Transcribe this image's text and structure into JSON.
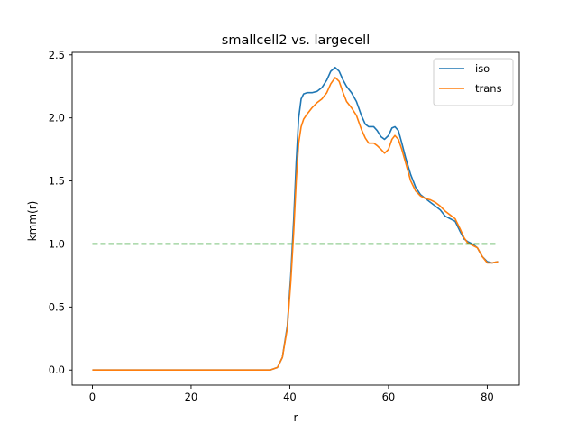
{
  "chart_data": {
    "type": "line",
    "title": "smallcell2 vs. largecell",
    "xlabel": "r",
    "ylabel": "kmm(r)",
    "xlim": [
      -4.1,
      86.5
    ],
    "ylim": [
      -0.12,
      2.52
    ],
    "xticks": [
      0,
      20,
      40,
      60,
      80
    ],
    "yticks": [
      0.0,
      0.5,
      1.0,
      1.5,
      2.0,
      2.5
    ],
    "xtick_labels": [
      "0",
      "20",
      "40",
      "60",
      "80"
    ],
    "ytick_labels": [
      "0.0",
      "0.5",
      "1.0",
      "1.5",
      "2.0",
      "2.5"
    ],
    "legend_position": "top-right",
    "grid": false,
    "series": [
      {
        "name": "iso",
        "color": "#1f77b4",
        "style": "solid",
        "x": [
          0,
          10,
          20,
          30,
          36,
          37.5,
          38.5,
          39.5,
          40.2,
          40.8,
          41.3,
          41.8,
          42.3,
          42.8,
          43.5,
          44.5,
          45.5,
          46.5,
          47.5,
          48.3,
          49.2,
          50,
          50.8,
          51.5,
          52.5,
          53.5,
          54.5,
          55.3,
          56,
          57,
          57.7,
          58.5,
          59.2,
          60,
          60.7,
          61.3,
          62,
          62.7,
          63.5,
          64.5,
          65.5,
          66.5,
          67.5,
          68.5,
          69.5,
          70.5,
          71.5,
          72.5,
          73.5,
          74.5,
          75.3,
          76,
          77,
          78,
          79,
          80,
          81,
          82.2
        ],
        "y": [
          0.0,
          0.0,
          0.0,
          0.0,
          0.0,
          0.02,
          0.1,
          0.35,
          0.75,
          1.2,
          1.65,
          2.0,
          2.15,
          2.19,
          2.2,
          2.2,
          2.21,
          2.24,
          2.3,
          2.37,
          2.4,
          2.37,
          2.3,
          2.25,
          2.2,
          2.13,
          2.02,
          1.95,
          1.93,
          1.93,
          1.9,
          1.85,
          1.83,
          1.86,
          1.92,
          1.93,
          1.9,
          1.8,
          1.68,
          1.55,
          1.45,
          1.39,
          1.36,
          1.33,
          1.3,
          1.27,
          1.22,
          1.2,
          1.18,
          1.1,
          1.04,
          1.02,
          1.0,
          0.97,
          0.9,
          0.86,
          0.85,
          0.86
        ]
      },
      {
        "name": "trans",
        "color": "#ff7f0e",
        "style": "solid",
        "x": [
          0,
          10,
          20,
          30,
          36,
          37.5,
          38.5,
          39.5,
          40.2,
          40.8,
          41.3,
          41.8,
          42.3,
          42.8,
          43.5,
          44.5,
          45.5,
          46.5,
          47.5,
          48.3,
          49.2,
          50,
          50.8,
          51.5,
          52.5,
          53.5,
          54.5,
          55.3,
          56,
          57,
          57.7,
          58.5,
          59.2,
          60,
          60.7,
          61.3,
          62,
          62.7,
          63.5,
          64.5,
          65.5,
          66.5,
          67.5,
          68.5,
          69.5,
          70.5,
          71.5,
          72.5,
          73.5,
          74.5,
          75.3,
          76,
          77,
          78,
          79,
          80,
          81,
          82.2
        ],
        "y": [
          0.0,
          0.0,
          0.0,
          0.0,
          0.0,
          0.02,
          0.1,
          0.33,
          0.7,
          1.1,
          1.5,
          1.8,
          1.93,
          1.99,
          2.03,
          2.08,
          2.12,
          2.15,
          2.2,
          2.27,
          2.32,
          2.29,
          2.2,
          2.13,
          2.08,
          2.02,
          1.91,
          1.84,
          1.8,
          1.8,
          1.78,
          1.75,
          1.72,
          1.75,
          1.83,
          1.86,
          1.83,
          1.75,
          1.64,
          1.5,
          1.42,
          1.38,
          1.36,
          1.35,
          1.33,
          1.3,
          1.26,
          1.23,
          1.2,
          1.12,
          1.05,
          1.01,
          0.99,
          0.97,
          0.9,
          0.85,
          0.85,
          0.86
        ]
      },
      {
        "name": "",
        "color": "#2ca02c",
        "style": "dashed",
        "x": [
          0,
          82.2
        ],
        "y": [
          1.0,
          1.0
        ]
      }
    ]
  }
}
